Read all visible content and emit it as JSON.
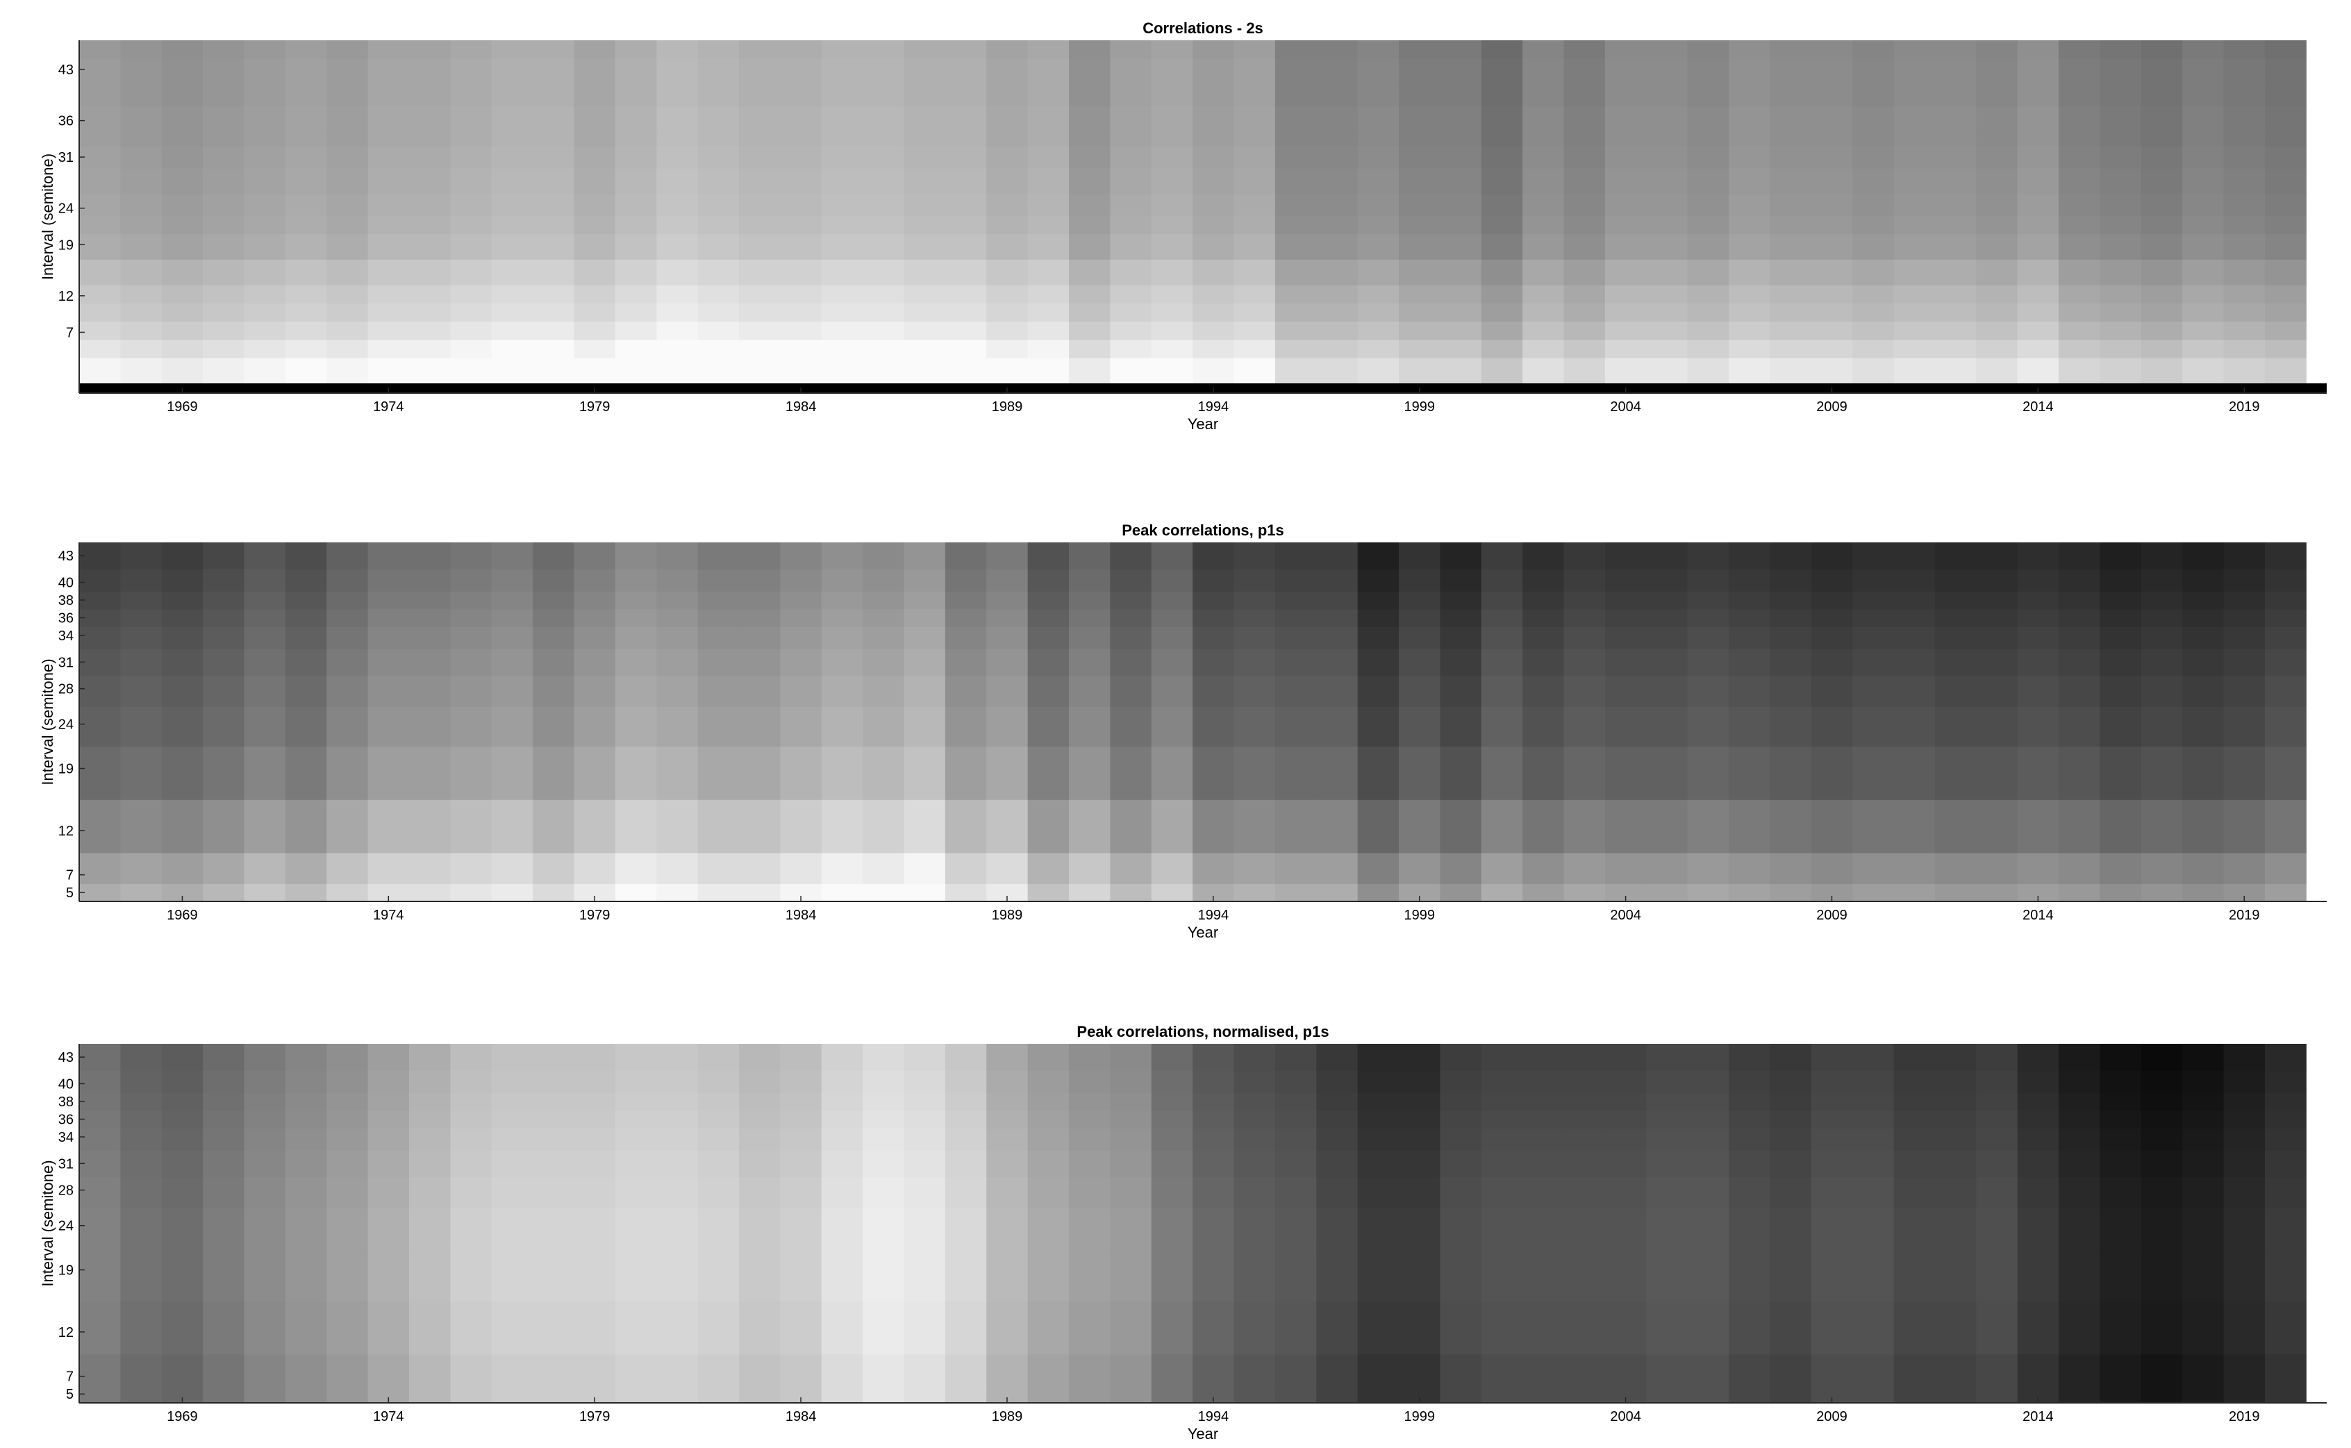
{
  "chart_data": [
    {
      "type": "heatmap",
      "title": "Correlations - 2s",
      "xlabel": "Year",
      "ylabel": "Interval (semitone)",
      "x_ticks": [
        "1969",
        "1974",
        "1979",
        "1984",
        "1989",
        "1994",
        "1999",
        "2004",
        "2009",
        "2014",
        "2019"
      ],
      "y_ticks": [
        "43",
        "36",
        "31",
        "24",
        "19",
        "12",
        "7"
      ],
      "x_range": [
        1966.5,
        2021
      ],
      "y_range": [
        0,
        47
      ],
      "colormap": "gray",
      "x": [
        1967,
        1968,
        1969,
        1970,
        1971,
        1972,
        1973,
        1974,
        1975,
        1976,
        1977,
        1978,
        1979,
        1980,
        1981,
        1982,
        1983,
        1984,
        1985,
        1986,
        1987,
        1988,
        1989,
        1990,
        1991,
        1992,
        1993,
        1994,
        1995,
        1996,
        1997,
        1998,
        1999,
        2000,
        2001,
        2002,
        2003,
        2004,
        2005,
        2006,
        2007,
        2008,
        2009,
        2010,
        2011,
        2012,
        2013,
        2014,
        2015,
        2016,
        2017,
        2018,
        2019,
        2020
      ],
      "column_level": [
        0.62,
        0.6,
        0.58,
        0.6,
        0.62,
        0.64,
        0.62,
        0.66,
        0.66,
        0.68,
        0.7,
        0.7,
        0.66,
        0.7,
        0.74,
        0.72,
        0.7,
        0.7,
        0.72,
        0.72,
        0.7,
        0.7,
        0.66,
        0.68,
        0.58,
        0.64,
        0.66,
        0.62,
        0.64,
        0.52,
        0.52,
        0.54,
        0.5,
        0.5,
        0.44,
        0.54,
        0.5,
        0.56,
        0.56,
        0.54,
        0.58,
        0.56,
        0.56,
        0.54,
        0.56,
        0.56,
        0.54,
        0.58,
        0.5,
        0.48,
        0.46,
        0.5,
        0.48,
        0.46
      ],
      "row_intervals": [
        2,
        5,
        7,
        10,
        12,
        15,
        19,
        22,
        24,
        28,
        31,
        34,
        36,
        40,
        43,
        46
      ],
      "row_offset": [
        0.34,
        0.28,
        0.22,
        0.18,
        0.16,
        0.12,
        0.06,
        0.04,
        0.03,
        0.02,
        0.01,
        0.0,
        0.0,
        -0.01,
        -0.01,
        -0.02
      ]
    },
    {
      "type": "heatmap",
      "title": "Peak correlations, p1s",
      "xlabel": "Year",
      "ylabel": "Interval (semitone)",
      "x_ticks": [
        "1969",
        "1974",
        "1979",
        "1984",
        "1989",
        "1994",
        "1999",
        "2004",
        "2009",
        "2014",
        "2019"
      ],
      "y_ticks": [
        "43",
        "40",
        "38",
        "36",
        "34",
        "31",
        "28",
        "24",
        "19",
        "12",
        "7",
        "5"
      ],
      "x_range": [
        1966.5,
        2021
      ],
      "y_range": [
        4,
        44.5
      ],
      "colormap": "gray",
      "x": [
        1967,
        1968,
        1969,
        1970,
        1971,
        1972,
        1973,
        1974,
        1975,
        1976,
        1977,
        1978,
        1979,
        1980,
        1981,
        1982,
        1983,
        1984,
        1985,
        1986,
        1987,
        1988,
        1989,
        1990,
        1991,
        1992,
        1993,
        1994,
        1995,
        1996,
        1997,
        1998,
        1999,
        2000,
        2001,
        2002,
        2003,
        2004,
        2005,
        2006,
        2007,
        2008,
        2009,
        2010,
        2011,
        2012,
        2013,
        2014,
        2015,
        2016,
        2017,
        2018,
        2019,
        2020
      ],
      "column_level": [
        0.3,
        0.32,
        0.3,
        0.34,
        0.4,
        0.36,
        0.44,
        0.5,
        0.5,
        0.52,
        0.54,
        0.48,
        0.54,
        0.6,
        0.58,
        0.54,
        0.54,
        0.58,
        0.62,
        0.6,
        0.64,
        0.5,
        0.54,
        0.38,
        0.46,
        0.36,
        0.44,
        0.3,
        0.32,
        0.3,
        0.3,
        0.18,
        0.26,
        0.2,
        0.3,
        0.24,
        0.28,
        0.26,
        0.26,
        0.28,
        0.26,
        0.24,
        0.22,
        0.24,
        0.24,
        0.22,
        0.22,
        0.24,
        0.22,
        0.18,
        0.2,
        0.18,
        0.2,
        0.24
      ],
      "row_intervals": [
        5,
        7,
        12,
        19,
        24,
        28,
        31,
        34,
        36,
        38,
        40,
        43
      ],
      "row_offset": [
        0.38,
        0.32,
        0.22,
        0.12,
        0.08,
        0.06,
        0.04,
        0.02,
        0.0,
        -0.02,
        -0.04,
        -0.06
      ]
    },
    {
      "type": "heatmap",
      "title": "Peak correlations, normalised, p1s",
      "xlabel": "Year",
      "ylabel": "Interval (semitone)",
      "x_ticks": [
        "1969",
        "1974",
        "1979",
        "1984",
        "1989",
        "1994",
        "1999",
        "2004",
        "2009",
        "2014",
        "2019"
      ],
      "y_ticks": [
        "43",
        "40",
        "38",
        "36",
        "34",
        "31",
        "28",
        "24",
        "19",
        "12",
        "7",
        "5"
      ],
      "x_range": [
        1966.5,
        2021
      ],
      "y_range": [
        4,
        44.5
      ],
      "colormap": "gray",
      "x": [
        1967,
        1968,
        1969,
        1970,
        1971,
        1972,
        1973,
        1974,
        1975,
        1976,
        1977,
        1978,
        1979,
        1980,
        1981,
        1982,
        1983,
        1984,
        1985,
        1986,
        1987,
        1988,
        1989,
        1990,
        1991,
        1992,
        1993,
        1994,
        1995,
        1996,
        1997,
        1998,
        1999,
        2000,
        2001,
        2002,
        2003,
        2004,
        2005,
        2006,
        2007,
        2008,
        2009,
        2010,
        2011,
        2012,
        2013,
        2014,
        2015,
        2016,
        2017,
        2018,
        2019,
        2020
      ],
      "column_level": [
        0.48,
        0.42,
        0.4,
        0.46,
        0.52,
        0.56,
        0.6,
        0.66,
        0.72,
        0.78,
        0.8,
        0.8,
        0.8,
        0.82,
        0.82,
        0.8,
        0.76,
        0.78,
        0.86,
        0.9,
        0.88,
        0.82,
        0.7,
        0.64,
        0.6,
        0.58,
        0.46,
        0.38,
        0.34,
        0.32,
        0.26,
        0.2,
        0.2,
        0.28,
        0.3,
        0.3,
        0.3,
        0.3,
        0.32,
        0.32,
        0.28,
        0.26,
        0.3,
        0.3,
        0.26,
        0.26,
        0.28,
        0.2,
        0.14,
        0.1,
        0.08,
        0.1,
        0.14,
        0.2
      ],
      "row_intervals": [
        5,
        7,
        12,
        19,
        24,
        28,
        31,
        34,
        36,
        38,
        40,
        43
      ],
      "row_offset": [
        0.0,
        0.0,
        0.02,
        0.03,
        0.03,
        0.02,
        0.01,
        0.0,
        -0.01,
        -0.02,
        -0.03,
        -0.04
      ]
    }
  ]
}
